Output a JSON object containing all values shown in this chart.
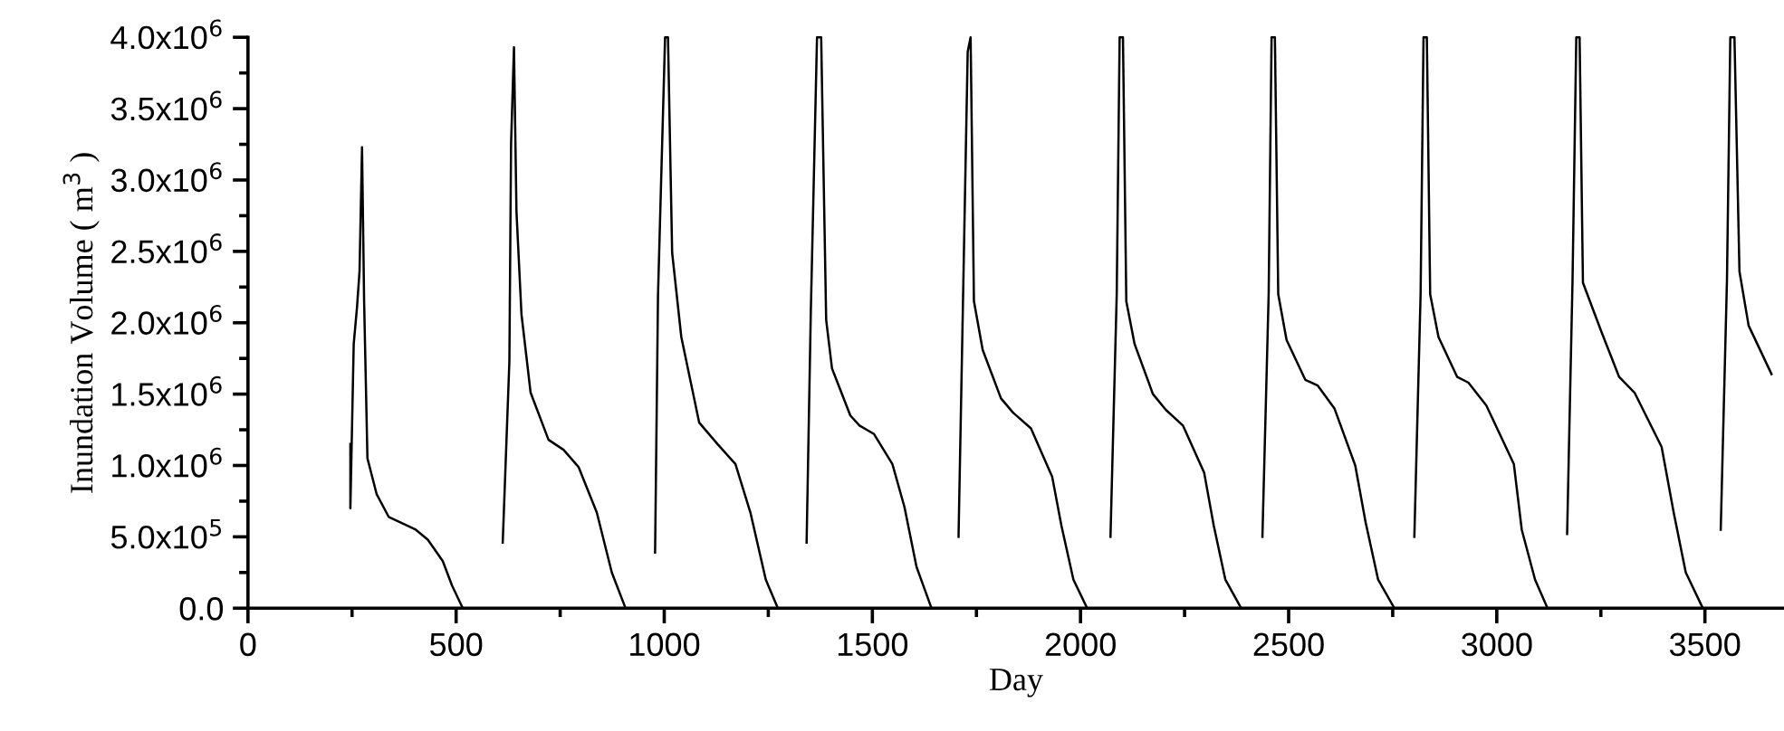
{
  "chart_data": {
    "type": "line",
    "xlabel": "Day",
    "ylabel": "Inundation Volume ( m$^{3}$ )",
    "xlim": [
      0,
      3690
    ],
    "ylim": [
      0,
      4000000
    ],
    "xticks": [
      0,
      {
        "value": 250,
        "label": null
      },
      500,
      {
        "value": 750,
        "label": null
      },
      1000,
      {
        "value": 1250,
        "label": null
      },
      1500,
      {
        "value": 1750,
        "label": null
      },
      2000,
      {
        "value": 2250,
        "label": null
      },
      2500,
      {
        "value": 2750,
        "label": null
      },
      3000,
      {
        "value": 3250,
        "label": null
      },
      3500
    ],
    "yticks": [
      {
        "value": 0,
        "label": "0.0"
      },
      {
        "value": 250000,
        "label": null
      },
      {
        "value": 500000,
        "label": "5.0x10$^{5}$"
      },
      {
        "value": 750000,
        "label": null
      },
      {
        "value": 1000000,
        "label": "1.0x10$^{6}$"
      },
      {
        "value": 1250000,
        "label": null
      },
      {
        "value": 1500000,
        "label": "1.5x10$^{6}$"
      },
      {
        "value": 1750000,
        "label": null
      },
      {
        "value": 2000000,
        "label": "2.0x10$^{6}$"
      },
      {
        "value": 2250000,
        "label": null
      },
      {
        "value": 2500000,
        "label": "2.5x10$^{6}$"
      },
      {
        "value": 2750000,
        "label": null
      },
      {
        "value": 3000000,
        "label": "3.0x10$^{6}$"
      },
      {
        "value": 3250000,
        "label": null
      },
      {
        "value": 3500000,
        "label": "3.5x10$^{6}$"
      },
      {
        "value": 3750000,
        "label": null
      },
      {
        "value": 4000000,
        "label": "4.0x10$^{6}$"
      }
    ],
    "grid": false,
    "marker": "none",
    "line_style": "solid",
    "series": [
      {
        "color": "#000000",
        "x": [
          246,
          246,
          254,
          262,
          268,
          274,
          279,
          287,
          309,
          338,
          403,
          432,
          468,
          490,
          516
        ],
        "values": [
          1150000,
          700000,
          1850000,
          2110000,
          2360000,
          3230000,
          2150000,
          1050000,
          800000,
          640000,
          550000,
          480000,
          330000,
          160000,
          0
        ]
      },
      {
        "color": "#000000",
        "x": [
          612,
          628,
          632,
          639,
          645,
          657,
          679,
          722,
          758,
          794,
          838,
          874,
          907
        ],
        "values": [
          460000,
          1730000,
          3250000,
          3930000,
          2780000,
          2060000,
          1510000,
          1180000,
          1110000,
          990000,
          670000,
          250000,
          0
        ]
      },
      {
        "color": "#000000",
        "x": [
          978,
          985,
          1002,
          1009,
          1019,
          1041,
          1084,
          1128,
          1171,
          1207,
          1244,
          1273
        ],
        "values": [
          390000,
          2190000,
          4000000,
          4000000,
          2490000,
          1900000,
          1300000,
          1150000,
          1010000,
          670000,
          200000,
          0
        ]
      },
      {
        "color": "#000000",
        "x": [
          1342,
          1352,
          1367,
          1377,
          1389,
          1403,
          1447,
          1469,
          1504,
          1548,
          1577,
          1606,
          1642
        ],
        "values": [
          460000,
          2060000,
          4000000,
          4000000,
          2020000,
          1680000,
          1350000,
          1280000,
          1220000,
          1010000,
          710000,
          290000,
          0
        ]
      },
      {
        "color": "#000000",
        "x": [
          1707,
          1729,
          1736,
          1744,
          1765,
          1809,
          1838,
          1881,
          1932,
          1954,
          1983,
          2016
        ],
        "values": [
          500000,
          3900000,
          4000000,
          2150000,
          1810000,
          1470000,
          1370000,
          1260000,
          920000,
          580000,
          200000,
          0
        ]
      },
      {
        "color": "#000000",
        "x": [
          2072,
          2087,
          2094,
          2102,
          2110,
          2130,
          2174,
          2205,
          2246,
          2297,
          2320,
          2348,
          2386
        ],
        "values": [
          500000,
          2200000,
          4000000,
          4000000,
          2150000,
          1850000,
          1500000,
          1390000,
          1280000,
          950000,
          580000,
          200000,
          0
        ]
      },
      {
        "color": "#000000",
        "x": [
          2437,
          2452,
          2459,
          2467,
          2475,
          2495,
          2540,
          2570,
          2610,
          2660,
          2685,
          2715,
          2754
        ],
        "values": [
          500000,
          2200000,
          4000000,
          4000000,
          2200000,
          1880000,
          1600000,
          1560000,
          1400000,
          1000000,
          600000,
          200000,
          0
        ]
      },
      {
        "color": "#000000",
        "x": [
          2802,
          2817,
          2824,
          2832,
          2840,
          2860,
          2905,
          2932,
          2975,
          3041,
          3060,
          3092,
          3122
        ],
        "values": [
          500000,
          2200000,
          4000000,
          4000000,
          2200000,
          1900000,
          1620000,
          1580000,
          1420000,
          1010000,
          550000,
          200000,
          0
        ]
      },
      {
        "color": "#000000",
        "x": [
          3169,
          3182,
          3191,
          3199,
          3207,
          3251,
          3294,
          3331,
          3396,
          3425,
          3454,
          3495
        ],
        "values": [
          520000,
          2300000,
          4000000,
          4000000,
          2280000,
          1940000,
          1620000,
          1510000,
          1130000,
          670000,
          250000,
          0
        ]
      },
      {
        "color": "#000000",
        "x": [
          3538,
          3553,
          3561,
          3571,
          3583,
          3605,
          3660
        ],
        "values": [
          550000,
          2300000,
          4000000,
          4000000,
          2360000,
          1980000,
          1640000
        ]
      }
    ]
  }
}
